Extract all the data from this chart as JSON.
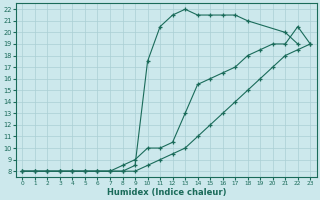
{
  "xlabel": "Humidex (Indice chaleur)",
  "bg_color": "#cce8ec",
  "grid_color": "#aacfd4",
  "line_color": "#1a6b5a",
  "xlim": [
    -0.5,
    23.5
  ],
  "ylim": [
    7.5,
    22.5
  ],
  "xticks": [
    0,
    1,
    2,
    3,
    4,
    5,
    6,
    7,
    8,
    9,
    10,
    11,
    12,
    13,
    14,
    15,
    16,
    17,
    18,
    19,
    20,
    21,
    22,
    23
  ],
  "yticks": [
    8,
    9,
    10,
    11,
    12,
    13,
    14,
    15,
    16,
    17,
    18,
    19,
    20,
    21,
    22
  ],
  "curve_steep_x": [
    0,
    1,
    2,
    3,
    4,
    5,
    6,
    7,
    8,
    9,
    10,
    11,
    12,
    13,
    14,
    15,
    16,
    17,
    18,
    21,
    22
  ],
  "curve_steep_y": [
    8,
    8,
    8,
    8,
    8,
    8,
    8,
    8,
    8,
    8.5,
    17.5,
    20.5,
    21.5,
    22,
    21.5,
    21.5,
    21.5,
    21.5,
    21,
    20,
    19
  ],
  "curve_mid_x": [
    0,
    1,
    2,
    3,
    4,
    5,
    6,
    7,
    8,
    9,
    10,
    11,
    12,
    13,
    14,
    15,
    16,
    17,
    18,
    19,
    20,
    21,
    22,
    23
  ],
  "curve_mid_y": [
    8,
    8,
    8,
    8,
    8,
    8,
    8,
    8,
    8.5,
    9,
    10,
    10,
    10.5,
    13,
    15.5,
    16,
    16.5,
    17,
    18,
    18.5,
    19,
    19,
    20.5,
    19
  ],
  "curve_flat_x": [
    0,
    1,
    2,
    3,
    4,
    5,
    6,
    7,
    8,
    9,
    10,
    11,
    12,
    13,
    14,
    15,
    16,
    17,
    18,
    19,
    20,
    21,
    22,
    23
  ],
  "curve_flat_y": [
    8,
    8,
    8,
    8,
    8,
    8,
    8,
    8,
    8,
    8,
    8.5,
    9,
    9.5,
    10,
    11,
    12,
    13,
    14,
    15,
    16,
    17,
    18,
    18.5,
    19
  ]
}
